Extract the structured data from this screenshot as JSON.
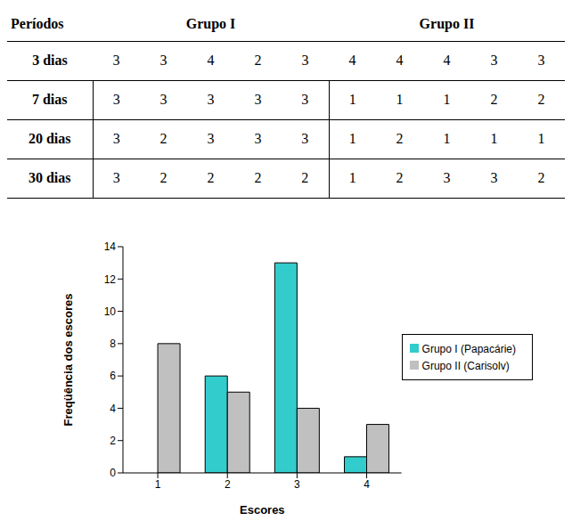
{
  "table": {
    "header": [
      "Períodos",
      "Grupo I",
      "Grupo II"
    ],
    "rows": [
      [
        "3 dias",
        3,
        3,
        4,
        2,
        3,
        4,
        4,
        4,
        3,
        3
      ],
      [
        "7 dias",
        3,
        3,
        3,
        3,
        3,
        1,
        1,
        1,
        2,
        2
      ],
      [
        "20 dias",
        3,
        2,
        3,
        3,
        3,
        1,
        2,
        1,
        1,
        1
      ],
      [
        "30 dias",
        3,
        2,
        2,
        2,
        2,
        1,
        2,
        3,
        3,
        2
      ]
    ]
  },
  "chart_data": {
    "type": "bar",
    "categories": [
      "1",
      "2",
      "3",
      "4"
    ],
    "series": [
      {
        "name": "Grupo I (Papacárie)",
        "color": "#33cccc",
        "values": [
          0,
          6,
          13,
          1
        ]
      },
      {
        "name": "Grupo II (Carisolv)",
        "color": "#c0c0c0",
        "values": [
          8,
          5,
          4,
          3
        ]
      }
    ],
    "x_label": "Escores",
    "y_label": "Freqüência dos escores",
    "ylim": [
      0,
      14
    ],
    "yticks": [
      0,
      2,
      4,
      6,
      8,
      10,
      12,
      14
    ],
    "grid": false,
    "legend": "right"
  }
}
